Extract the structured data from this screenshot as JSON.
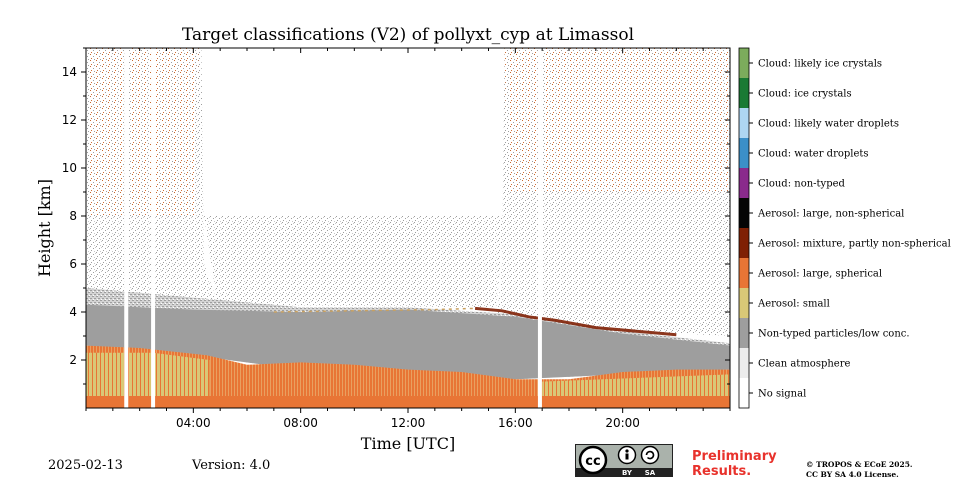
{
  "title": "Target classifications (V2) of pollyxt_cyp at Limassol",
  "footer": {
    "date": "2025-02-13",
    "version": "Version: 4.0",
    "preliminary_line1": "Preliminary",
    "preliminary_line2": "Results.",
    "copyright_line1": "© TROPOS & ECoE 2025.",
    "copyright_line2": "CC BY SA 4.0 License.",
    "license_badge": {
      "cc": "cc",
      "by": "BY",
      "sa": "SA"
    }
  },
  "chart_data": {
    "type": "heatmap",
    "title": "Target classifications (V2) of pollyxt_cyp at Limassol",
    "xlabel": "Time [UTC]",
    "ylabel": "Height [km]",
    "xlim": [
      "00:00",
      "24:00"
    ],
    "ylim": [
      0,
      15
    ],
    "x_tick_labels": [
      "04:00",
      "08:00",
      "12:00",
      "16:00",
      "20:00"
    ],
    "x_tick_hours": [
      4,
      8,
      12,
      16,
      20
    ],
    "y_tick_values": [
      2,
      4,
      6,
      8,
      10,
      12,
      14
    ],
    "y_tick_labels": [
      "2",
      "4",
      "6",
      "8",
      "10",
      "12",
      "14"
    ],
    "colorbar_classes": [
      {
        "label": "Cloud: likely ice crystals",
        "color": "#7cac5c"
      },
      {
        "label": "Cloud: ice crystals",
        "color": "#1a7a34"
      },
      {
        "label": "Cloud: likely water droplets",
        "color": "#aed6f2"
      },
      {
        "label": "Cloud: water droplets",
        "color": "#3b8fc8"
      },
      {
        "label": "Cloud: non-typed",
        "color": "#8a2a8c"
      },
      {
        "label": "Aerosol: large, non-spherical",
        "color": "#050505"
      },
      {
        "label": "Aerosol: mixture, partly non-spherical",
        "color": "#7f2004"
      },
      {
        "label": "Aerosol: large, spherical",
        "color": "#e87535"
      },
      {
        "label": "Aerosol: small",
        "color": "#d9c877"
      },
      {
        "label": "Non-typed particles/low conc.",
        "color": "#9e9e9e"
      },
      {
        "label": "Clean atmosphere",
        "color": "#ececec"
      },
      {
        "label": "No signal",
        "color": "#ffffff"
      }
    ],
    "data_gaps_utc": [
      "01:30",
      "02:30",
      "16:55"
    ],
    "layers": [
      {
        "class": "Aerosol: large, spherical",
        "top_km_approx": 2.5,
        "hours": [
          0,
          24
        ]
      },
      {
        "class": "Aerosol: small",
        "top_km_approx": 2.3,
        "hours": [
          0,
          24
        ]
      },
      {
        "class": "Non-typed particles/low conc.",
        "top_km_approx": 5.0,
        "hours": [
          0,
          24
        ]
      },
      {
        "class": "Aerosol: mixture, partly non-spherical",
        "height_km_approx": 3.9,
        "hours": [
          14.5,
          19
        ]
      }
    ]
  }
}
